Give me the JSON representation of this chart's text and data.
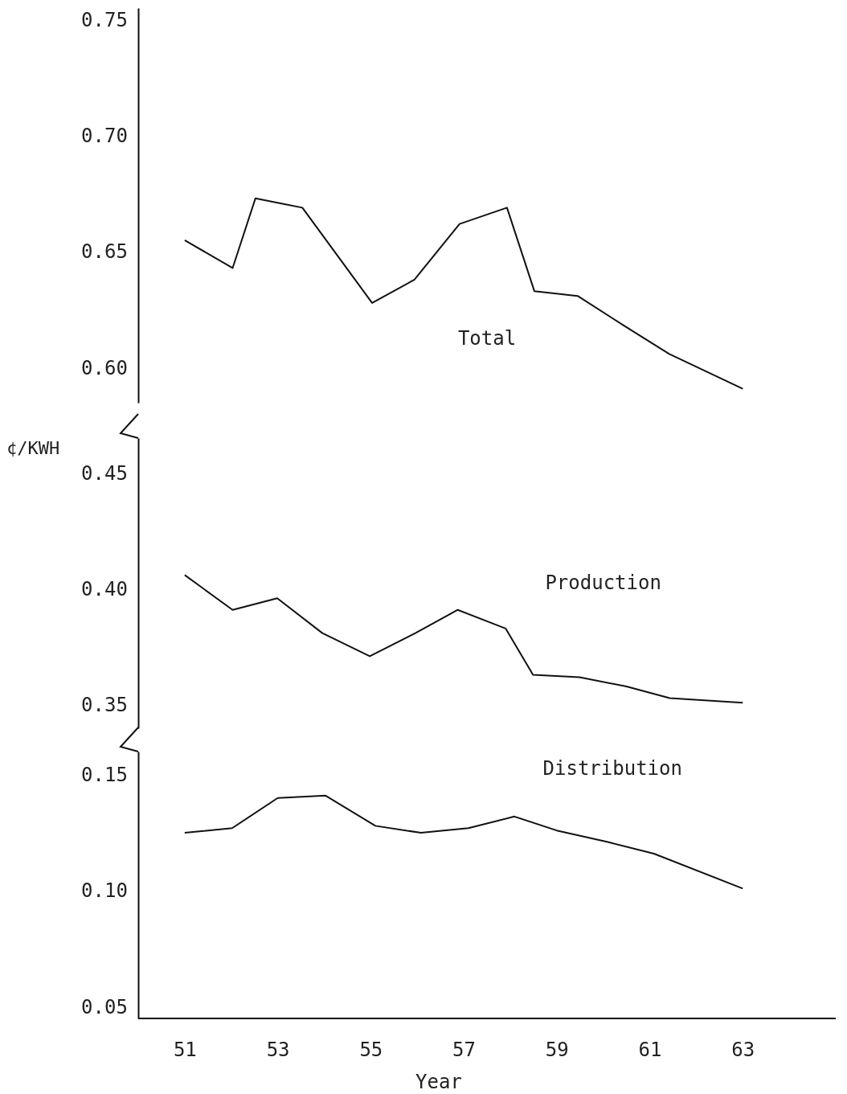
{
  "chart_data": [
    {
      "type": "line",
      "series": [
        {
          "name": "Total",
          "color": "#111111",
          "x": [
            51,
            52.03,
            52.52,
            53.53,
            55.03,
            55.94,
            56.91,
            57.93,
            58.52,
            59.45,
            60.46,
            61.42,
            63
          ],
          "values": [
            0.655,
            0.643,
            0.673,
            0.669,
            0.628,
            0.638,
            0.662,
            0.669,
            0.633,
            0.631,
            0.618,
            0.606,
            0.591
          ]
        }
      ],
      "xlim": [
        51,
        63
      ],
      "xticks": [
        51,
        53,
        55,
        57,
        59,
        61,
        63
      ],
      "ylim": [
        0.585,
        0.755
      ],
      "yticks": [
        {
          "value": 0.6,
          "label": "0.60"
        },
        {
          "value": 0.65,
          "label": "0.65"
        },
        {
          "value": 0.7,
          "label": "0.70"
        },
        {
          "value": 0.75,
          "label": "0.75"
        }
      ],
      "tick_labels": "y",
      "grid": false,
      "legend": false,
      "marker": "none",
      "line_style": "solid"
    },
    {
      "type": "line",
      "ylabel": "¢/KWH",
      "series": [
        {
          "name": "Production",
          "color": "#111111",
          "x": [
            51,
            52.03,
            52.99,
            53.96,
            54.98,
            55.96,
            56.87,
            57.9,
            58.49,
            59.49,
            60.5,
            61.43,
            63
          ],
          "values": [
            0.406,
            0.391,
            0.396,
            0.381,
            0.371,
            0.381,
            0.391,
            0.383,
            0.363,
            0.362,
            0.358,
            0.353,
            0.351
          ]
        }
      ],
      "xlim": [
        51,
        63
      ],
      "xticks": [
        51,
        53,
        55,
        57,
        59,
        61,
        63
      ],
      "ylim": [
        0.34,
        0.465
      ],
      "yticks": [
        {
          "value": 0.35,
          "label": "0.35"
        },
        {
          "value": 0.4,
          "label": "0.40"
        },
        {
          "value": 0.45,
          "label": "0.45"
        }
      ],
      "tick_labels": "y",
      "grid": false,
      "legend": false,
      "marker": "none",
      "line_style": "solid"
    },
    {
      "type": "line",
      "xlabel": "Year",
      "series": [
        {
          "name": "Distribution",
          "color": "#111111",
          "x": [
            51,
            52.02,
            53,
            54.03,
            55.1,
            56.08,
            57.1,
            58.09,
            59,
            60.1,
            61.09,
            63
          ],
          "values": [
            0.125,
            0.127,
            0.14,
            0.141,
            0.128,
            0.125,
            0.127,
            0.132,
            0.126,
            0.121,
            0.116,
            0.101
          ]
        }
      ],
      "xlim": [
        50,
        65
      ],
      "xticks": [
        51,
        53,
        55,
        57,
        59,
        61,
        63
      ],
      "ylim": [
        0.045,
        0.16
      ],
      "yticks": [
        {
          "value": 0.05,
          "label": "0.05"
        },
        {
          "value": 0.1,
          "label": "0.10"
        },
        {
          "value": 0.15,
          "label": "0.15"
        }
      ],
      "grid": false,
      "legend": false,
      "marker": "none",
      "line_style": "solid"
    }
  ]
}
